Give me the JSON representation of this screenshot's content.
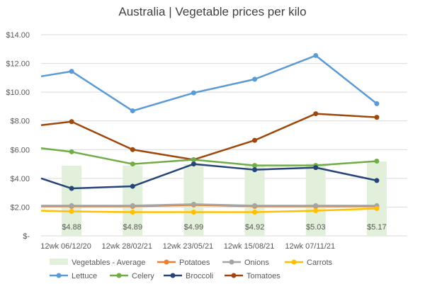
{
  "chart_data": {
    "type": "line",
    "title": "Australia | Vegetable prices per kilo",
    "xlabel": "",
    "ylabel": "",
    "ylim": [
      0,
      14
    ],
    "yticks": [
      "$-",
      "$2.00",
      "$4.00",
      "$6.00",
      "$8.00",
      "$10.00",
      "$12.00",
      "$14.00"
    ],
    "categories": [
      "12wk 06/12/20",
      "12wk 28/02/21",
      "12wk 23/05/21",
      "12wk 15/08/21",
      "12wk 07/11/21",
      ""
    ],
    "bars": {
      "name": "Vegetables - Average",
      "color": "#e2efda",
      "values": [
        4.88,
        4.89,
        4.99,
        4.92,
        5.03,
        5.17
      ],
      "labels": [
        "$4.88",
        "$4.89",
        "$4.99",
        "$4.92",
        "$5.03",
        "$5.17"
      ]
    },
    "series": [
      {
        "name": "Lettuce",
        "color": "#5b9bd5",
        "start": 11.1,
        "values": [
          11.45,
          8.7,
          9.95,
          10.9,
          12.55,
          9.2
        ]
      },
      {
        "name": "Tomatoes",
        "color": "#9e480e",
        "start": 7.7,
        "values": [
          7.95,
          6.0,
          5.3,
          6.65,
          8.5,
          8.25
        ]
      },
      {
        "name": "Celery",
        "color": "#70ad47",
        "start": 6.1,
        "values": [
          5.85,
          5.0,
          5.3,
          4.9,
          4.9,
          5.2
        ]
      },
      {
        "name": "Broccoli",
        "color": "#264478",
        "start": 4.0,
        "values": [
          3.3,
          3.45,
          5.0,
          4.6,
          4.75,
          3.85
        ]
      },
      {
        "name": "Potatoes",
        "color": "#ed7d31",
        "start": 2.05,
        "values": [
          2.05,
          2.05,
          2.15,
          2.05,
          2.05,
          2.05
        ]
      },
      {
        "name": "Onions",
        "color": "#a5a5a5",
        "start": 2.1,
        "values": [
          2.1,
          2.1,
          2.2,
          2.1,
          2.1,
          2.1
        ]
      },
      {
        "name": "Carrots",
        "color": "#ffc000",
        "start": 1.75,
        "values": [
          1.7,
          1.65,
          1.65,
          1.65,
          1.75,
          1.9
        ]
      }
    ],
    "legend": {
      "position": "bottom",
      "row1": [
        "Vegetables - Average",
        "Potatoes",
        "Onions",
        "Carrots"
      ],
      "row2": [
        "Lettuce",
        "Celery",
        "Broccoli",
        "Tomatoes"
      ]
    },
    "grid": true
  }
}
